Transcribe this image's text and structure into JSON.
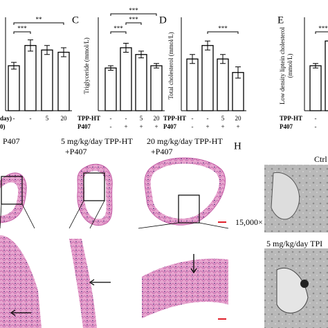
{
  "chart_data": [
    {
      "type": "bar",
      "ylabel": [],
      "categories": [
        null,
        null,
        null,
        null
      ],
      "values": [
        2.0,
        2.9,
        2.7,
        2.6
      ],
      "errors": [
        0.15,
        0.25,
        0.2,
        0.2
      ],
      "ylim": [
        0,
        4
      ],
      "group_rows": [
        [
          "day)",
          "-",
          "-",
          "5",
          "20"
        ],
        [
          "0)"
        ]
      ],
      "significance": [
        {
          "label": "***",
          "from": 0,
          "to": 1
        },
        {
          "label": "**",
          "from": 0,
          "to": 3
        }
      ]
    },
    {
      "type": "bar",
      "panel_label": "C",
      "ylabel": [
        "Triglyceride (mmol/L)"
      ],
      "categories": [
        null,
        null,
        null,
        null
      ],
      "values": [
        1.9,
        2.8,
        2.5,
        2.0
      ],
      "errors": [
        0.1,
        0.2,
        0.15,
        0.1
      ],
      "ylim": [
        0,
        4
      ],
      "group_rows": [
        [
          "TPP-HT",
          "-",
          "-",
          "5",
          "20"
        ],
        [
          "P407",
          "-",
          "+",
          "+",
          "+"
        ]
      ],
      "significance": [
        {
          "label": "***",
          "from": 0,
          "to": 1
        },
        {
          "label": "***",
          "from": 1,
          "to": 2
        },
        {
          "label": "***",
          "from": 0,
          "to": 3
        }
      ]
    },
    {
      "type": "bar",
      "panel_label": "D",
      "ylabel": [
        "Total cholesterol (mmol/L)"
      ],
      "categories": [
        null,
        null,
        null,
        null
      ],
      "values": [
        2.3,
        2.9,
        2.3,
        1.7
      ],
      "errors": [
        0.2,
        0.2,
        0.2,
        0.25
      ],
      "ylim": [
        0,
        4
      ],
      "group_rows": [
        [
          "TPP-HT",
          "-",
          "-",
          "5",
          "20"
        ],
        [
          "P407",
          "-",
          "+",
          "+",
          "+"
        ]
      ],
      "significance": [
        {
          "label": "***",
          "from": 1,
          "to": 3
        }
      ]
    },
    {
      "type": "bar",
      "panel_label": "E",
      "ylabel": [
        "Low density liptein cholesterol",
        "(mmol/L)"
      ],
      "categories": [
        null,
        null
      ],
      "values": [
        2.0,
        3.1
      ],
      "errors": [
        0.1,
        0.2
      ],
      "ylim": [
        0,
        4
      ],
      "group_rows": [
        [
          "TPP-HT",
          "-"
        ],
        [
          "P407",
          "-"
        ]
      ],
      "significance": [
        {
          "label": "***",
          "from": 0,
          "to": 1
        }
      ]
    }
  ],
  "figure": {
    "histology_labels": [
      [
        "P407"
      ],
      [
        "5 mg/kg/day TPP-HT",
        "+P407"
      ],
      [
        "20 mg/kg/day TPP-HT",
        "+P407"
      ]
    ],
    "panel_h": "H",
    "tem_label_ctrl": "Ctrl",
    "magnification": "15,000×",
    "tem_label_low": "5 mg/kg/day TPI"
  }
}
